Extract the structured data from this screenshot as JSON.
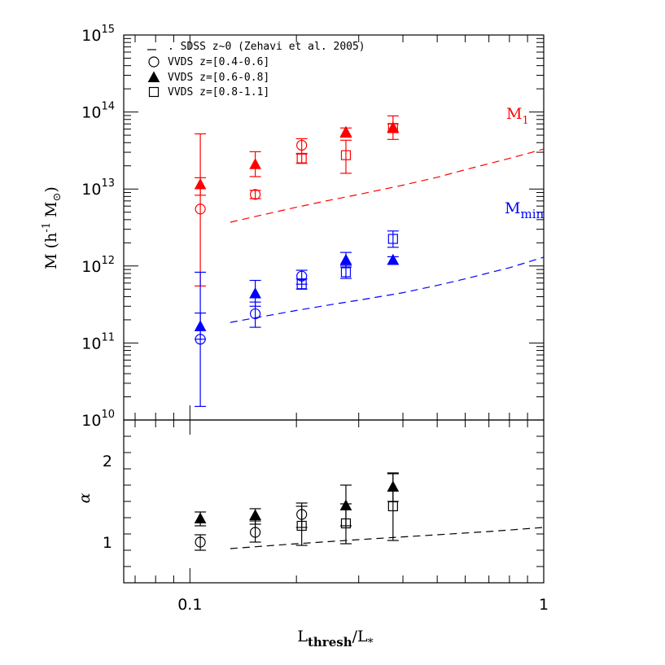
{
  "colors": {
    "red": "#ff0000",
    "blue": "#0000ff",
    "black": "#000000"
  },
  "legend": [
    {
      "marker": "dash-line",
      "label": ". SDSS z~0 (Zehavi et al. 2005)"
    },
    {
      "marker": "open-circle",
      "label": "VVDS z=[0.4-0.6]"
    },
    {
      "marker": "filled-triangle",
      "label": "VVDS z=[0.6-0.8]"
    },
    {
      "marker": "open-square",
      "label": "VVDS z=[0.8-1.1]"
    }
  ],
  "annotations": {
    "m1": {
      "main": "M",
      "sub": "1",
      "color": "#ff0000"
    },
    "mmin": {
      "main": "M",
      "sub": "min",
      "color": "#0000ff"
    }
  },
  "ylabel_top": {
    "main": "M (h",
    "sup": "-1",
    "rest": " M",
    "sub": "⊙",
    "close": ")"
  },
  "ylabel_bottom": "α",
  "xlabel": {
    "main": "L",
    "sub1": "thresh",
    "mid": "/L",
    "sub2": "*"
  },
  "chart_data": [
    {
      "type": "scatter",
      "title": "",
      "xscale": "log",
      "yscale": "log",
      "xlim": [
        0.065,
        1.0
      ],
      "ylim": [
        10000000000.0,
        1000000000000000.0
      ],
      "xticks": [
        {
          "value": 0.1,
          "label": "0.1"
        },
        {
          "value": 1,
          "label": "1"
        }
      ],
      "yticks": [
        {
          "value": 10000000000.0,
          "base": "10",
          "exp": "10"
        },
        {
          "value": 100000000000.0,
          "base": "10",
          "exp": "11"
        },
        {
          "value": 1000000000000.0,
          "base": "10",
          "exp": "12"
        },
        {
          "value": 10000000000000.0,
          "base": "10",
          "exp": "13"
        },
        {
          "value": 100000000000000.0,
          "base": "10",
          "exp": "14"
        },
        {
          "value": 1000000000000000.0,
          "base": "10",
          "exp": "15"
        }
      ],
      "ylabel": "M (h-1 M⊙)",
      "series": [
        {
          "name": "SDSS z~0 (Zehavi et al. 2005)",
          "quantity": "M1",
          "style": "dashed",
          "color": "#ff0000",
          "x": [
            0.13,
            0.16,
            0.2,
            0.25,
            0.3,
            0.4,
            0.5,
            0.6,
            0.8,
            1.0
          ],
          "y": [
            3700000000000.0,
            4600000000000.0,
            5800000000000.0,
            7200000000000.0,
            8500000000000.0,
            11200000000000.0,
            14200000000000.0,
            17800000000000.0,
            25000000000000.0,
            33000000000000.0
          ]
        },
        {
          "name": "SDSS z~0 (Zehavi et al. 2005)",
          "quantity": "Mmin",
          "style": "dashed",
          "color": "#0000ff",
          "x": [
            0.13,
            0.16,
            0.2,
            0.25,
            0.3,
            0.4,
            0.5,
            0.6,
            0.8,
            1.0
          ],
          "y": [
            185000000000.0,
            220000000000.0,
            265000000000.0,
            315000000000.0,
            360000000000.0,
            450000000000.0,
            560000000000.0,
            680000000000.0,
            950000000000.0,
            1300000000000.0
          ]
        },
        {
          "name": "VVDS z=[0.4-0.6]",
          "quantity": "M1",
          "marker": "open-circle",
          "color": "#ff0000",
          "points": [
            {
              "x": 0.107,
              "y": 5500000000000.0,
              "lo": 550000000000.0,
              "hi": 52000000000000.0
            },
            {
              "x": 0.153,
              "y": 8500000000000.0,
              "lo": 7500000000000.0,
              "hi": 9600000000000.0
            },
            {
              "x": 0.207,
              "y": 37000000000000.0,
              "lo": 29000000000000.0,
              "hi": 45000000000000.0
            }
          ]
        },
        {
          "name": "VVDS z=[0.6-0.8]",
          "quantity": "M1",
          "marker": "filled-triangle",
          "color": "#ff0000",
          "points": [
            {
              "x": 0.107,
              "y": 11500000000000.0,
              "lo": 8300000000000.0,
              "hi": 14000000000000.0
            },
            {
              "x": 0.153,
              "y": 21000000000000.0,
              "lo": 14500000000000.0,
              "hi": 30500000000000.0
            },
            {
              "x": 0.276,
              "y": 55000000000000.0,
              "lo": 47000000000000.0,
              "hi": 62000000000000.0
            },
            {
              "x": 0.375,
              "y": 63000000000000.0,
              "lo": 44000000000000.0,
              "hi": 89000000000000.0
            }
          ]
        },
        {
          "name": "VVDS z=[0.8-1.1]",
          "quantity": "M1",
          "marker": "open-square",
          "color": "#ff0000",
          "points": [
            {
              "x": 0.207,
              "y": 25000000000000.0,
              "lo": 21500000000000.0,
              "hi": 28500000000000.0
            },
            {
              "x": 0.276,
              "y": 27500000000000.0,
              "lo": 16000000000000.0,
              "hi": 43000000000000.0
            },
            {
              "x": 0.375,
              "y": 62000000000000.0,
              "lo": 54000000000000.0,
              "hi": 70000000000000.0
            }
          ]
        },
        {
          "name": "VVDS z=[0.4-0.6]",
          "quantity": "Mmin",
          "marker": "open-circle",
          "color": "#0000ff",
          "points": [
            {
              "x": 0.107,
              "y": 112000000000.0,
              "lo": 15000000000.0,
              "hi": 830000000000.0
            },
            {
              "x": 0.153,
              "y": 240000000000.0,
              "lo": 160000000000.0,
              "hi": 340000000000.0
            },
            {
              "x": 0.207,
              "y": 740000000000.0,
              "lo": 580000000000.0,
              "hi": 880000000000.0
            }
          ]
        },
        {
          "name": "VVDS z=[0.6-0.8]",
          "quantity": "Mmin",
          "marker": "filled-triangle",
          "color": "#0000ff",
          "points": [
            {
              "x": 0.107,
              "y": 165000000000.0,
              "lo": 112000000000.0,
              "hi": 245000000000.0
            },
            {
              "x": 0.153,
              "y": 440000000000.0,
              "lo": 300000000000.0,
              "hi": 650000000000.0
            },
            {
              "x": 0.276,
              "y": 1200000000000.0,
              "lo": 970000000000.0,
              "hi": 1500000000000.0
            },
            {
              "x": 0.375,
              "y": 1200000000000.0,
              "lo": 1050000000000.0,
              "hi": 1320000000000.0
            }
          ]
        },
        {
          "name": "VVDS z=[0.8-1.1]",
          "quantity": "Mmin",
          "marker": "open-square",
          "color": "#0000ff",
          "points": [
            {
              "x": 0.207,
              "y": 580000000000.0,
              "lo": 500000000000.0,
              "hi": 680000000000.0
            },
            {
              "x": 0.276,
              "y": 830000000000.0,
              "lo": 690000000000.0,
              "hi": 1020000000000.0
            },
            {
              "x": 0.375,
              "y": 2250000000000.0,
              "lo": 1750000000000.0,
              "hi": 2850000000000.0
            }
          ]
        }
      ]
    },
    {
      "type": "scatter",
      "title": "",
      "xscale": "log",
      "yscale": "linear",
      "xlim": [
        0.065,
        1.0
      ],
      "ylim": [
        0.5,
        2.5
      ],
      "xticks": [
        {
          "value": 0.1,
          "label": "0.1"
        },
        {
          "value": 1,
          "label": "1"
        }
      ],
      "yticks": [
        {
          "value": 1,
          "label": "1"
        },
        {
          "value": 2,
          "label": "2"
        }
      ],
      "xlabel": "Lthresh/L*",
      "ylabel": "α",
      "series": [
        {
          "name": "SDSS z~0 (Zehavi et al. 2005)",
          "style": "dashed",
          "color": "#000000",
          "x": [
            0.13,
            0.2,
            0.3,
            0.5,
            0.7,
            1.0
          ],
          "y": [
            0.92,
            0.98,
            1.03,
            1.09,
            1.13,
            1.18
          ]
        },
        {
          "name": "VVDS z=[0.4-0.6]",
          "marker": "open-circle",
          "color": "#000000",
          "points": [
            {
              "x": 0.107,
              "y": 1.0,
              "lo": 0.9,
              "hi": 1.09
            },
            {
              "x": 0.153,
              "y": 1.12,
              "lo": 1.0,
              "hi": 1.26
            },
            {
              "x": 0.207,
              "y": 1.34,
              "lo": 1.18,
              "hi": 1.48
            }
          ]
        },
        {
          "name": "VVDS z=[0.6-0.8]",
          "marker": "filled-triangle",
          "color": "#000000",
          "points": [
            {
              "x": 0.107,
              "y": 1.29,
              "lo": 1.2,
              "hi": 1.37
            },
            {
              "x": 0.153,
              "y": 1.33,
              "lo": 1.22,
              "hi": 1.41
            },
            {
              "x": 0.276,
              "y": 1.45,
              "lo": 1.2,
              "hi": 1.7
            },
            {
              "x": 0.375,
              "y": 1.68,
              "lo": 1.5,
              "hi": 1.85
            }
          ]
        },
        {
          "name": "VVDS z=[0.8-1.1]",
          "marker": "open-square",
          "color": "#000000",
          "points": [
            {
              "x": 0.207,
              "y": 1.2,
              "lo": 0.96,
              "hi": 1.44
            },
            {
              "x": 0.276,
              "y": 1.23,
              "lo": 0.98,
              "hi": 1.47
            },
            {
              "x": 0.375,
              "y": 1.44,
              "lo": 1.02,
              "hi": 1.84
            }
          ]
        }
      ]
    }
  ]
}
